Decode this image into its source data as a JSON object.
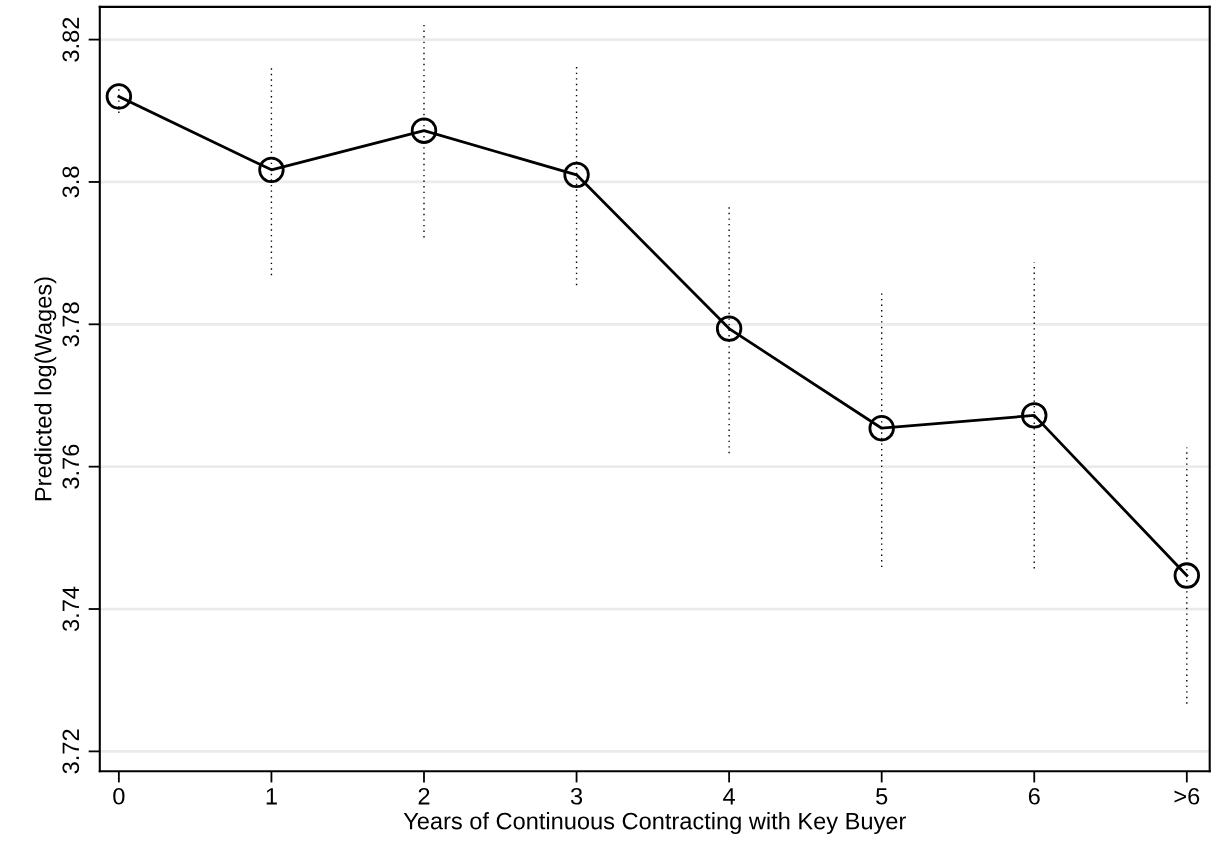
{
  "chart_data": {
    "type": "line",
    "xlabel": "Years of Continuous Contracting with Key Buyer",
    "ylabel": "Predicted log(Wages)",
    "categories": [
      "0",
      "1",
      "2",
      "3",
      "4",
      "5",
      "6",
      ">6"
    ],
    "series": [
      {
        "color": "#000000",
        "values": [
          3.812,
          3.8017,
          3.8072,
          3.801,
          3.7794,
          3.7654,
          3.7672,
          3.7447
        ],
        "errors": [
          0.0023,
          0.0148,
          0.015,
          0.0155,
          0.0175,
          0.0195,
          0.0215,
          0.018
        ]
      }
    ],
    "ylim": [
      3.7172,
      3.8246
    ],
    "yticks": [
      3.72,
      3.74,
      3.76,
      3.78,
      {
        "value": 3.8,
        "label": "3.8"
      },
      3.82
    ],
    "grid": "y",
    "marker": "circle",
    "line_style": "solid",
    "legend": false
  }
}
